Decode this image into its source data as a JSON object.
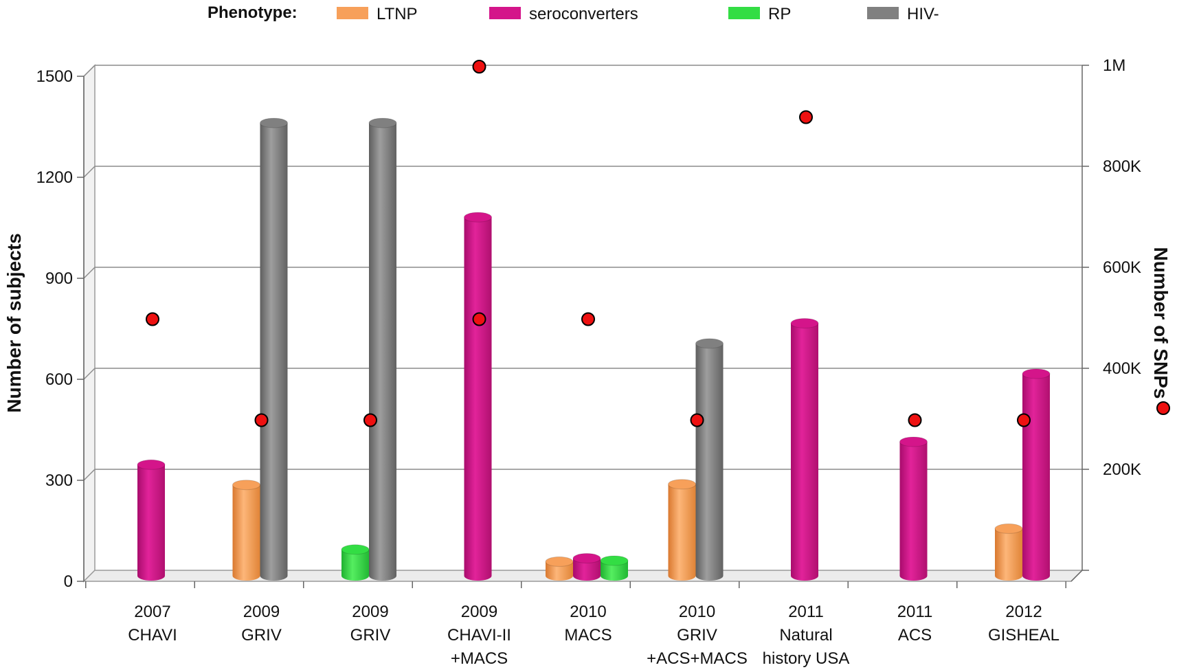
{
  "chart_data": {
    "type": "bar",
    "legend": {
      "title": "Phenotype:",
      "position": "top"
    },
    "categories": [
      [
        "2007",
        "CHAVI"
      ],
      [
        "2009",
        "GRIV"
      ],
      [
        "2009",
        "GRIV"
      ],
      [
        "2009",
        "CHAVI-II",
        "+MACS"
      ],
      [
        "2010",
        "MACS"
      ],
      [
        "2010",
        "GRIV",
        "+ACS+MACS"
      ],
      [
        "2011",
        "Natural",
        "history USA"
      ],
      [
        "2011",
        "ACS"
      ],
      [
        "2012",
        "GISHEAL"
      ]
    ],
    "series": [
      {
        "name": "LTNP",
        "color": "#F7A05A",
        "values": [
          null,
          270,
          null,
          null,
          42,
          272,
          null,
          null,
          140
        ]
      },
      {
        "name": "seroconverters",
        "color": "#D4158A",
        "values": [
          330,
          null,
          null,
          1065,
          52,
          null,
          750,
          398,
          600
        ]
      },
      {
        "name": "RP",
        "color": "#33DD44",
        "values": [
          null,
          null,
          78,
          null,
          45,
          null,
          null,
          null,
          null
        ]
      },
      {
        "name": "HIV-",
        "color": "#808080",
        "values": [
          null,
          1345,
          1345,
          null,
          null,
          690,
          null,
          null,
          null
        ]
      }
    ],
    "snp_series": {
      "name": "Number of SNPs",
      "color": "#EE1111",
      "points": [
        {
          "category_index": 0,
          "value": 500000
        },
        {
          "category_index": 1,
          "value": 300000
        },
        {
          "category_index": 2,
          "value": 300000
        },
        {
          "category_index": 3,
          "value": 1000000
        },
        {
          "category_index": 3,
          "value": 500000
        },
        {
          "category_index": 4,
          "value": 500000
        },
        {
          "category_index": 5,
          "value": 300000
        },
        {
          "category_index": 6,
          "value": 900000
        },
        {
          "category_index": 7,
          "value": 300000
        },
        {
          "category_index": 8,
          "value": 300000
        }
      ]
    },
    "y_left": {
      "label": "Number of subjects",
      "ylim": [
        0,
        1500
      ],
      "ticks": [
        0,
        300,
        600,
        900,
        1200,
        1500
      ],
      "tick_labels": [
        "0",
        "300",
        "600",
        "900",
        "1200",
        "1500"
      ]
    },
    "y_right": {
      "label": "Number of SNPs",
      "ylim": [
        0,
        1000000
      ],
      "ticks": [
        200000,
        400000,
        600000,
        800000,
        1000000
      ],
      "tick_labels": [
        "200K",
        "400K",
        "600K",
        "800K",
        "1M"
      ]
    },
    "grid": true
  }
}
